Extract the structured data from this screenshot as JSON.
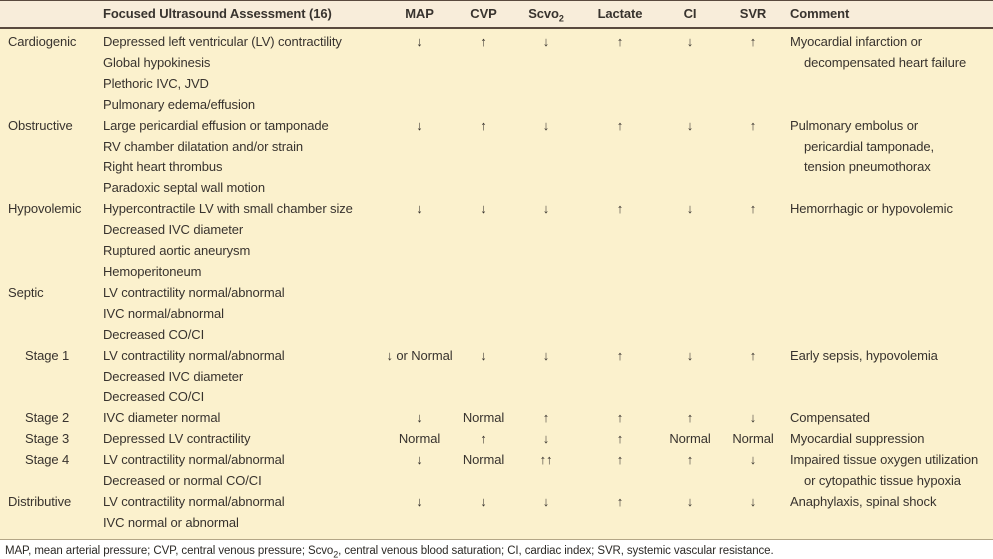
{
  "table": {
    "header": {
      "ultrasound": "Focused Ultrasound Assessment (16)",
      "map": "MAP",
      "cvp": "CVP",
      "scvo2_base": "Scvo",
      "scvo2_sub": "2",
      "lactate": "Lactate",
      "ci": "CI",
      "svr": "SVR",
      "comment": "Comment"
    },
    "rows": [
      {
        "type": "Cardiogenic",
        "indent": false,
        "findings": [
          "Depressed left ventricular (LV) contractility",
          "Global hypokinesis",
          "Plethoric IVC, JVD",
          "Pulmonary edema/effusion"
        ],
        "map": "↓",
        "cvp": "↑",
        "scvo2": "↓",
        "lactate": "↑",
        "ci": "↓",
        "svr": "↑",
        "comment": [
          "Myocardial infarction or",
          "decompensated heart failure"
        ]
      },
      {
        "type": "Obstructive",
        "indent": false,
        "findings": [
          "Large pericardial effusion or tamponade",
          "RV chamber dilatation and/or strain",
          "Right heart thrombus",
          "Paradoxic septal wall motion"
        ],
        "map": "↓",
        "cvp": "↑",
        "scvo2": "↓",
        "lactate": "↑",
        "ci": "↓",
        "svr": "↑",
        "comment": [
          "Pulmonary embolus or",
          "pericardial tamponade,",
          "tension pneumothorax"
        ]
      },
      {
        "type": "Hypovolemic",
        "indent": false,
        "findings": [
          "Hypercontractile LV with small chamber size",
          "Decreased IVC diameter",
          "Ruptured aortic aneurysm",
          "Hemoperitoneum"
        ],
        "map": "↓",
        "cvp": "↓",
        "scvo2": "↓",
        "lactate": "↑",
        "ci": "↓",
        "svr": "↑",
        "comment": [
          "Hemorrhagic or hypovolemic"
        ]
      },
      {
        "type": "Septic",
        "indent": false,
        "findings": [
          "LV contractility normal/abnormal",
          "IVC normal/abnormal",
          "Decreased CO/CI"
        ],
        "map": "",
        "cvp": "",
        "scvo2": "",
        "lactate": "",
        "ci": "",
        "svr": "",
        "comment": []
      },
      {
        "type": "Stage 1",
        "indent": true,
        "findings": [
          "LV contractility normal/abnormal",
          "Decreased IVC diameter",
          "Decreased CO/CI"
        ],
        "map": "↓ or Normal",
        "cvp": "↓",
        "scvo2": "↓",
        "lactate": "↑",
        "ci": "↓",
        "svr": "↑",
        "comment": [
          "Early sepsis, hypovolemia"
        ]
      },
      {
        "type": "Stage 2",
        "indent": true,
        "findings": [
          "IVC diameter normal"
        ],
        "map": "↓",
        "cvp": "Normal",
        "scvo2": "↑",
        "lactate": "↑",
        "ci": "↑",
        "svr": "↓",
        "comment": [
          "Compensated"
        ]
      },
      {
        "type": "Stage 3",
        "indent": true,
        "findings": [
          "Depressed LV contractility"
        ],
        "map": "Normal",
        "cvp": "↑",
        "scvo2": "↓",
        "lactate": "↑",
        "ci": "Normal",
        "svr": "Normal",
        "comment": [
          "Myocardial suppression"
        ]
      },
      {
        "type": "Stage 4",
        "indent": true,
        "findings": [
          "LV contractility normal/abnormal",
          "Decreased or normal CO/CI"
        ],
        "map": "↓",
        "cvp": "Normal",
        "scvo2": "↑↑",
        "lactate": "↑",
        "ci": "↑",
        "svr": "↓",
        "comment": [
          "Impaired tissue oxygen utilization",
          "or cytopathic tissue hypoxia"
        ]
      },
      {
        "type": "Distributive",
        "indent": false,
        "findings": [
          "LV contractility normal/abnormal",
          "IVC normal or abnormal"
        ],
        "map": "↓",
        "cvp": "↓",
        "scvo2": "↓",
        "lactate": "↑",
        "ci": "↓",
        "svr": "↓",
        "comment": [
          "Anaphylaxis, spinal shock"
        ]
      }
    ],
    "footnote": {
      "part1": "MAP, mean arterial pressure; CVP, central venous pressure; Scvo",
      "sub": "2",
      "part2": ", central venous blood saturation; CI, cardiac index; SVR, systemic vascular resistance."
    },
    "colors": {
      "body_bg": "#fbf1cd",
      "header_bg": "#f8edda",
      "rule": "#5a4a3f",
      "text": "#38332e"
    }
  }
}
